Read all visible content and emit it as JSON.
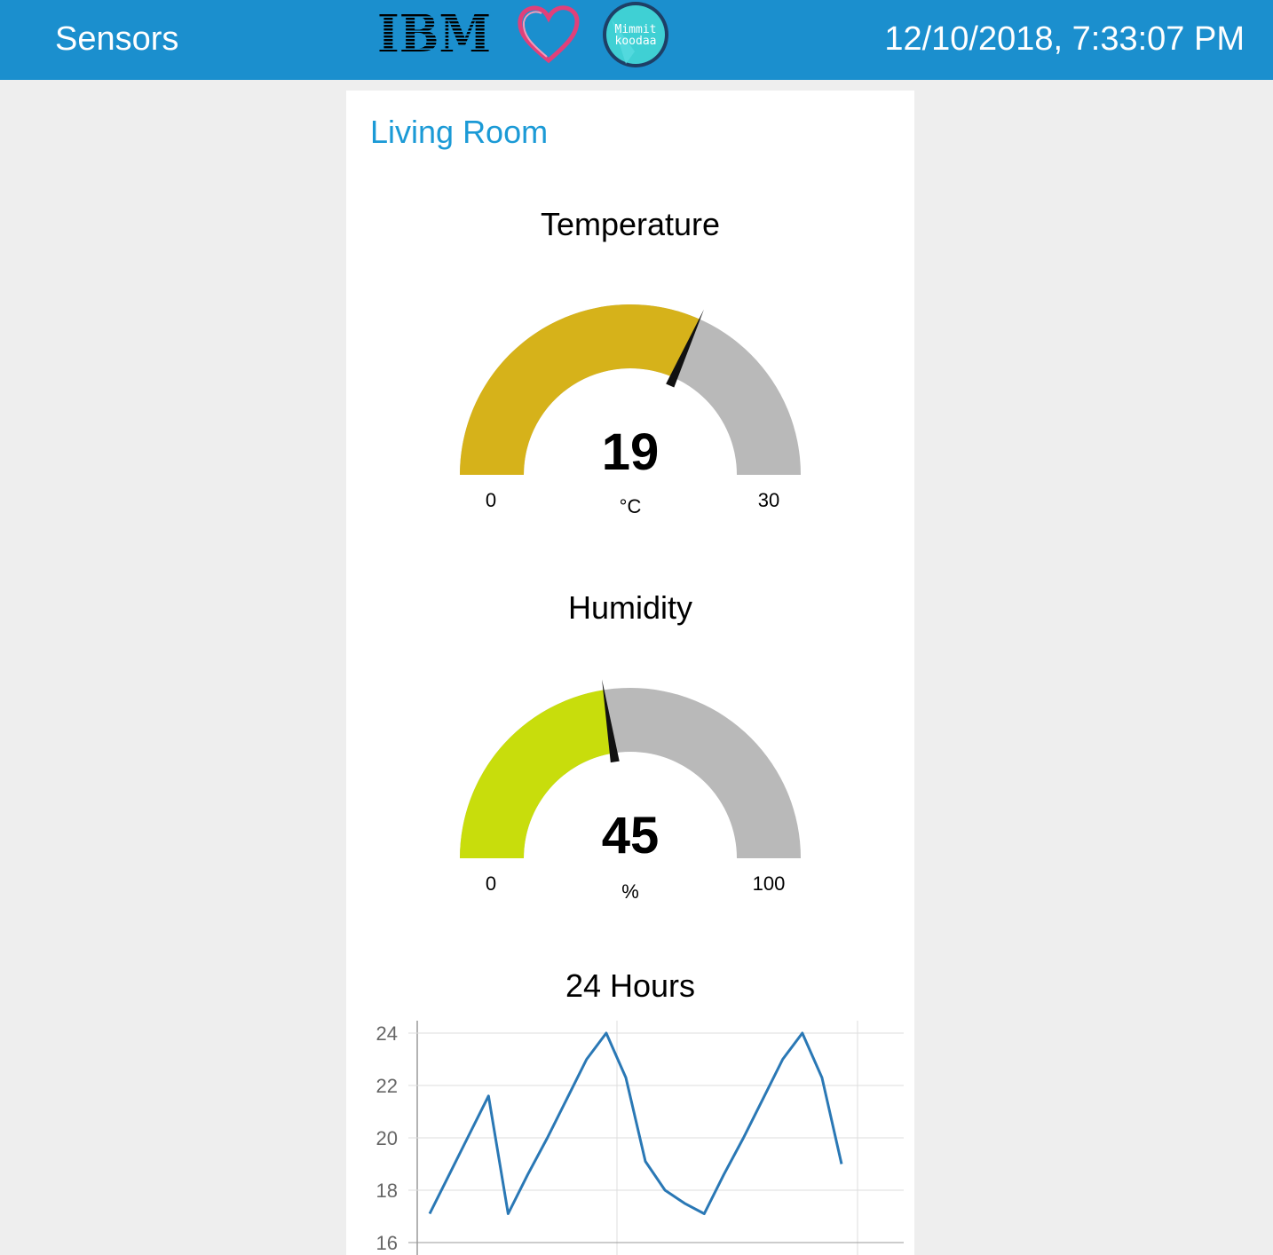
{
  "header": {
    "title": "Sensors",
    "datetime": "12/10/2018, 7:33:07 PM",
    "logos": {
      "ibm": "IBM",
      "badge_line1": "Mimmit",
      "badge_line2": "koodaa",
      "heart_icon": "heart-icon"
    },
    "color": "#1b8fce"
  },
  "group": {
    "title": "Living Room"
  },
  "gauges": {
    "temperature": {
      "title": "Temperature",
      "value": 19,
      "value_text": "19",
      "unit": "°C",
      "min": 0,
      "max": 30,
      "min_text": "0",
      "max_text": "30",
      "fill_color": "#d6b21a",
      "track_color": "#b9b9b9"
    },
    "humidity": {
      "title": "Humidity",
      "value": 45,
      "value_text": "45",
      "unit": "%",
      "min": 0,
      "max": 100,
      "min_text": "0",
      "max_text": "100",
      "fill_color": "#c8dd0c",
      "track_color": "#b9b9b9"
    }
  },
  "chart": {
    "title": "24 Hours"
  },
  "chart_data": {
    "type": "line",
    "title": "24 Hours",
    "xlabel": "",
    "ylabel": "",
    "ylim": [
      16,
      24
    ],
    "y_ticks": [
      "24",
      "22",
      "20",
      "18",
      "16"
    ],
    "grid": true,
    "series": [
      {
        "color": "#2a78b5",
        "values": [
          17.1,
          18.6,
          20.1,
          21.6,
          17.1,
          18.6,
          20.0,
          21.5,
          23.0,
          24.0,
          22.3,
          19.1,
          18.0,
          17.5,
          17.1,
          18.6,
          20.0,
          21.5,
          23.0,
          24.0,
          22.3,
          19.0
        ]
      }
    ]
  }
}
